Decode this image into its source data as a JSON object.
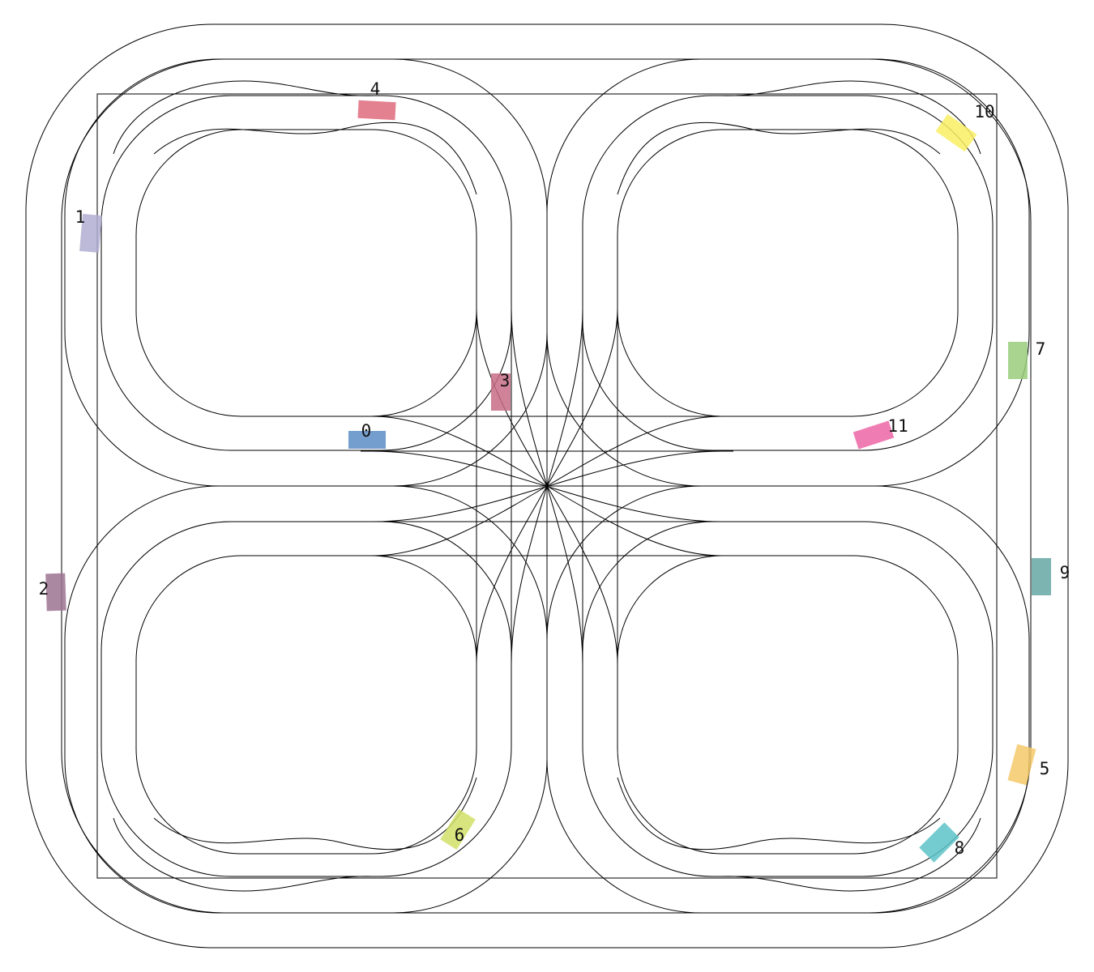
{
  "vehicles": [
    {
      "id": "0",
      "label": "0",
      "color": "#5c8dc4"
    },
    {
      "id": "1",
      "label": "1",
      "color": "#b2aed2"
    },
    {
      "id": "2",
      "label": "2",
      "color": "#9c7392"
    },
    {
      "id": "3",
      "label": "3",
      "color": "#c76c86"
    },
    {
      "id": "4",
      "label": "4",
      "color": "#df6b7c"
    },
    {
      "id": "5",
      "label": "5",
      "color": "#f5c96a"
    },
    {
      "id": "6",
      "label": "6",
      "color": "#d1e067"
    },
    {
      "id": "7",
      "label": "7",
      "color": "#99cd7c"
    },
    {
      "id": "8",
      "label": "8",
      "color": "#5cc3c8"
    },
    {
      "id": "9",
      "label": "9",
      "color": "#65a7a5"
    },
    {
      "id": "10",
      "label": "10",
      "color": "#f9ef64"
    },
    {
      "id": "11",
      "label": "11",
      "color": "#ec66a6"
    }
  ]
}
